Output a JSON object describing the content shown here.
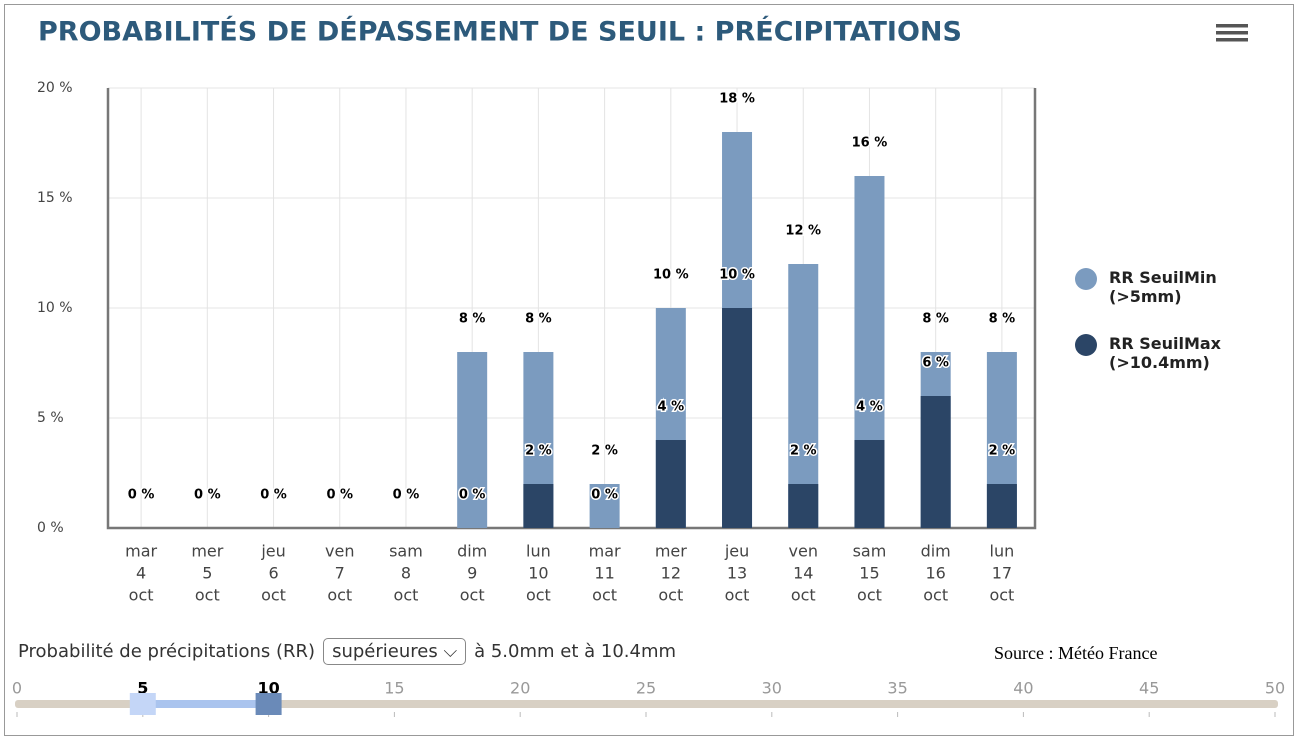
{
  "chart_data": {
    "type": "bar",
    "title": "PROBABILITÉS DE DÉPASSEMENT DE SEUIL : PRÉCIPITATIONS",
    "categories": [
      [
        "mar",
        "4",
        "oct"
      ],
      [
        "mer",
        "5",
        "oct"
      ],
      [
        "jeu",
        "6",
        "oct"
      ],
      [
        "ven",
        "7",
        "oct"
      ],
      [
        "sam",
        "8",
        "oct"
      ],
      [
        "dim",
        "9",
        "oct"
      ],
      [
        "lun",
        "10",
        "oct"
      ],
      [
        "mar",
        "11",
        "oct"
      ],
      [
        "mer",
        "12",
        "oct"
      ],
      [
        "jeu",
        "13",
        "oct"
      ],
      [
        "ven",
        "14",
        "oct"
      ],
      [
        "sam",
        "15",
        "oct"
      ],
      [
        "dim",
        "16",
        "oct"
      ],
      [
        "lun",
        "17",
        "oct"
      ]
    ],
    "series": [
      {
        "name": "RR SeuilMin (>5mm)",
        "color": "#7b9bbf",
        "values": [
          0,
          0,
          0,
          0,
          0,
          8,
          8,
          2,
          10,
          18,
          12,
          16,
          8,
          8
        ],
        "value_labels": [
          "0 %",
          "0 %",
          "0 %",
          "0 %",
          "0 %",
          "8 %",
          "8 %",
          "2 %",
          "10 %",
          "18 %",
          "12 %",
          "16 %",
          "8 %",
          "8 %"
        ]
      },
      {
        "name": "RR SeuilMax (>10.4mm)",
        "color": "#2b4566",
        "values": [
          0,
          0,
          0,
          0,
          0,
          0,
          2,
          0,
          4,
          10,
          2,
          4,
          6,
          2
        ],
        "value_labels": [
          "0 %",
          "0 %",
          "0 %",
          "0 %",
          "0 %",
          "0 %",
          "2 %",
          "0 %",
          "4 %",
          "10 %",
          "2 %",
          "4 %",
          "6 %",
          "2 %"
        ]
      }
    ],
    "ylim": [
      0,
      20
    ],
    "yticks": [
      {
        "value": 0,
        "label": "0 %"
      },
      {
        "value": 5,
        "label": "5 %"
      },
      {
        "value": 10,
        "label": "10 %"
      },
      {
        "value": 15,
        "label": "15 %"
      },
      {
        "value": 20,
        "label": "20 %"
      }
    ],
    "grid": true,
    "legend": "right"
  },
  "controls": {
    "label": "Probabilité de précipitations (RR)",
    "select": "supérieures",
    "after": "à 5.0mm et à 10.4mm",
    "source": "Source : Météo France",
    "slider": {
      "ticks": [
        0,
        5,
        10,
        15,
        20,
        25,
        30,
        35,
        40,
        45,
        50
      ],
      "range": [
        5,
        10
      ]
    }
  }
}
